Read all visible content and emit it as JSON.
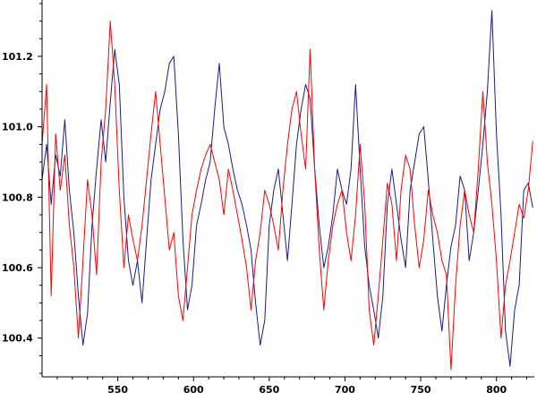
{
  "chart_data": {
    "type": "line",
    "title": "",
    "xlabel": "",
    "ylabel": "",
    "xlim": [
      500,
      825
    ],
    "ylim": [
      100.29,
      101.36
    ],
    "grid": false,
    "legend": "none",
    "xticks": [
      550,
      600,
      650,
      700,
      750,
      800
    ],
    "xtick_labels": [
      "550",
      "600",
      "650",
      "700",
      "750",
      "800"
    ],
    "yticks": [
      100.4,
      100.6,
      100.8,
      101.0,
      101.2
    ],
    "ytick_labels": [
      "100.4",
      "100.6",
      "100.8",
      "101.0",
      "101.2"
    ],
    "series": [
      {
        "color": "#1a1a8c",
        "x": [
          500,
          503,
          506,
          509,
          512,
          515,
          518,
          521,
          524,
          527,
          530,
          533,
          536,
          539,
          542,
          545,
          548,
          551,
          554,
          557,
          560,
          563,
          566,
          569,
          572,
          575,
          578,
          581,
          584,
          587,
          590,
          593,
          596,
          599,
          602,
          605,
          608,
          611,
          614,
          617,
          620,
          623,
          626,
          629,
          632,
          635,
          638,
          641,
          644,
          647,
          650,
          653,
          656,
          659,
          662,
          665,
          668,
          671,
          674,
          677,
          680,
          683,
          686,
          689,
          692,
          695,
          698,
          701,
          704,
          707,
          710,
          713,
          716,
          719,
          722,
          725,
          728,
          731,
          734,
          737,
          740,
          743,
          746,
          749,
          752,
          755,
          758,
          761,
          764,
          767,
          770,
          773,
          776,
          779,
          782,
          785,
          788,
          791,
          794,
          797,
          800,
          803,
          806,
          809,
          812,
          815,
          818,
          821,
          824
        ],
        "y": [
          100.85,
          100.95,
          100.78,
          100.92,
          100.86,
          101.02,
          100.82,
          100.7,
          100.52,
          100.38,
          100.47,
          100.72,
          100.88,
          101.02,
          100.9,
          101.07,
          101.22,
          101.12,
          100.8,
          100.62,
          100.55,
          100.62,
          100.5,
          100.68,
          100.85,
          100.95,
          101.05,
          101.1,
          101.18,
          101.2,
          100.98,
          100.68,
          100.48,
          100.55,
          100.72,
          100.78,
          100.85,
          100.9,
          101.05,
          101.18,
          101.0,
          100.95,
          100.88,
          100.82,
          100.78,
          100.72,
          100.65,
          100.5,
          100.38,
          100.45,
          100.72,
          100.82,
          100.88,
          100.75,
          100.62,
          100.78,
          100.95,
          101.05,
          101.12,
          101.08,
          100.88,
          100.72,
          100.6,
          100.66,
          100.75,
          100.88,
          100.82,
          100.78,
          100.88,
          101.12,
          100.88,
          100.66,
          100.55,
          100.48,
          100.4,
          100.52,
          100.78,
          100.88,
          100.78,
          100.68,
          100.6,
          100.82,
          100.9,
          100.98,
          101.0,
          100.85,
          100.68,
          100.52,
          100.42,
          100.55,
          100.66,
          100.72,
          100.86,
          100.82,
          100.62,
          100.7,
          100.82,
          100.95,
          101.1,
          101.33,
          100.98,
          100.75,
          100.42,
          100.32,
          100.48,
          100.55,
          100.82,
          100.84,
          100.77
        ]
      },
      {
        "color": "#ff0000",
        "x": [
          500,
          503,
          506,
          509,
          512,
          515,
          518,
          521,
          524,
          527,
          530,
          533,
          536,
          539,
          542,
          545,
          548,
          551,
          554,
          557,
          560,
          563,
          566,
          569,
          572,
          575,
          578,
          581,
          584,
          587,
          590,
          593,
          596,
          599,
          602,
          605,
          608,
          611,
          614,
          617,
          620,
          623,
          626,
          629,
          632,
          635,
          638,
          641,
          644,
          647,
          650,
          653,
          656,
          659,
          662,
          665,
          668,
          671,
          674,
          677,
          680,
          683,
          686,
          689,
          692,
          695,
          698,
          701,
          704,
          707,
          710,
          713,
          716,
          719,
          722,
          725,
          728,
          731,
          734,
          737,
          740,
          743,
          746,
          749,
          752,
          755,
          758,
          761,
          764,
          767,
          770,
          773,
          776,
          779,
          782,
          785,
          788,
          791,
          794,
          797,
          800,
          803,
          806,
          809,
          812,
          815,
          818,
          821,
          824
        ],
        "y": [
          100.95,
          101.12,
          100.52,
          100.98,
          100.82,
          100.92,
          100.72,
          100.6,
          100.4,
          100.62,
          100.85,
          100.75,
          100.58,
          100.9,
          101.05,
          101.3,
          101.12,
          100.82,
          100.6,
          100.75,
          100.68,
          100.62,
          100.72,
          100.85,
          100.98,
          101.1,
          100.95,
          100.8,
          100.65,
          100.7,
          100.52,
          100.45,
          100.6,
          100.75,
          100.82,
          100.88,
          100.92,
          100.95,
          100.9,
          100.85,
          100.75,
          100.88,
          100.82,
          100.75,
          100.68,
          100.6,
          100.48,
          100.62,
          100.7,
          100.82,
          100.78,
          100.72,
          100.65,
          100.82,
          100.95,
          101.05,
          101.1,
          100.98,
          100.88,
          101.22,
          100.88,
          100.65,
          100.48,
          100.62,
          100.72,
          100.78,
          100.82,
          100.7,
          100.62,
          100.75,
          100.95,
          100.78,
          100.48,
          100.38,
          100.52,
          100.68,
          100.84,
          100.78,
          100.62,
          100.82,
          100.92,
          100.88,
          100.72,
          100.6,
          100.68,
          100.82,
          100.75,
          100.7,
          100.62,
          100.58,
          100.31,
          100.55,
          100.72,
          100.82,
          100.75,
          100.7,
          100.88,
          101.1,
          100.9,
          100.78,
          100.62,
          100.4,
          100.55,
          100.62,
          100.7,
          100.78,
          100.74,
          100.82,
          100.96
        ]
      }
    ]
  }
}
